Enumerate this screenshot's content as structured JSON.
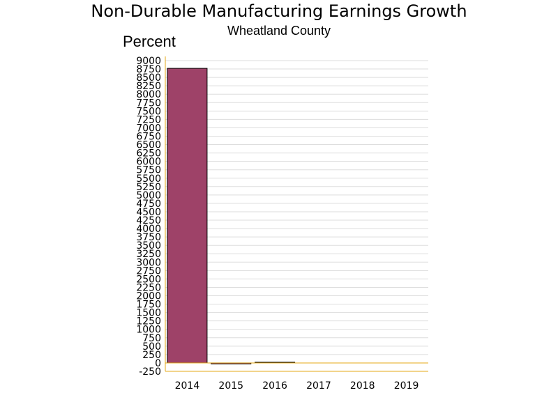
{
  "chart_data": {
    "type": "bar",
    "title": "Non-Durable Manufacturing Earnings Growth",
    "subtitle": "Wheatland County",
    "ylabel": "Percent",
    "xlabel": "",
    "categories": [
      "2014",
      "2015",
      "2016",
      "2017",
      "2018",
      "2019"
    ],
    "values": [
      8770,
      -30,
      20,
      0,
      0,
      0
    ],
    "ylim": [
      -250,
      9000
    ],
    "ytick_step": 250,
    "grid": true,
    "legend": "none",
    "colors": {
      "bar": "#9e4268",
      "axis": "#e6a817",
      "grid": "#dddddd"
    }
  }
}
